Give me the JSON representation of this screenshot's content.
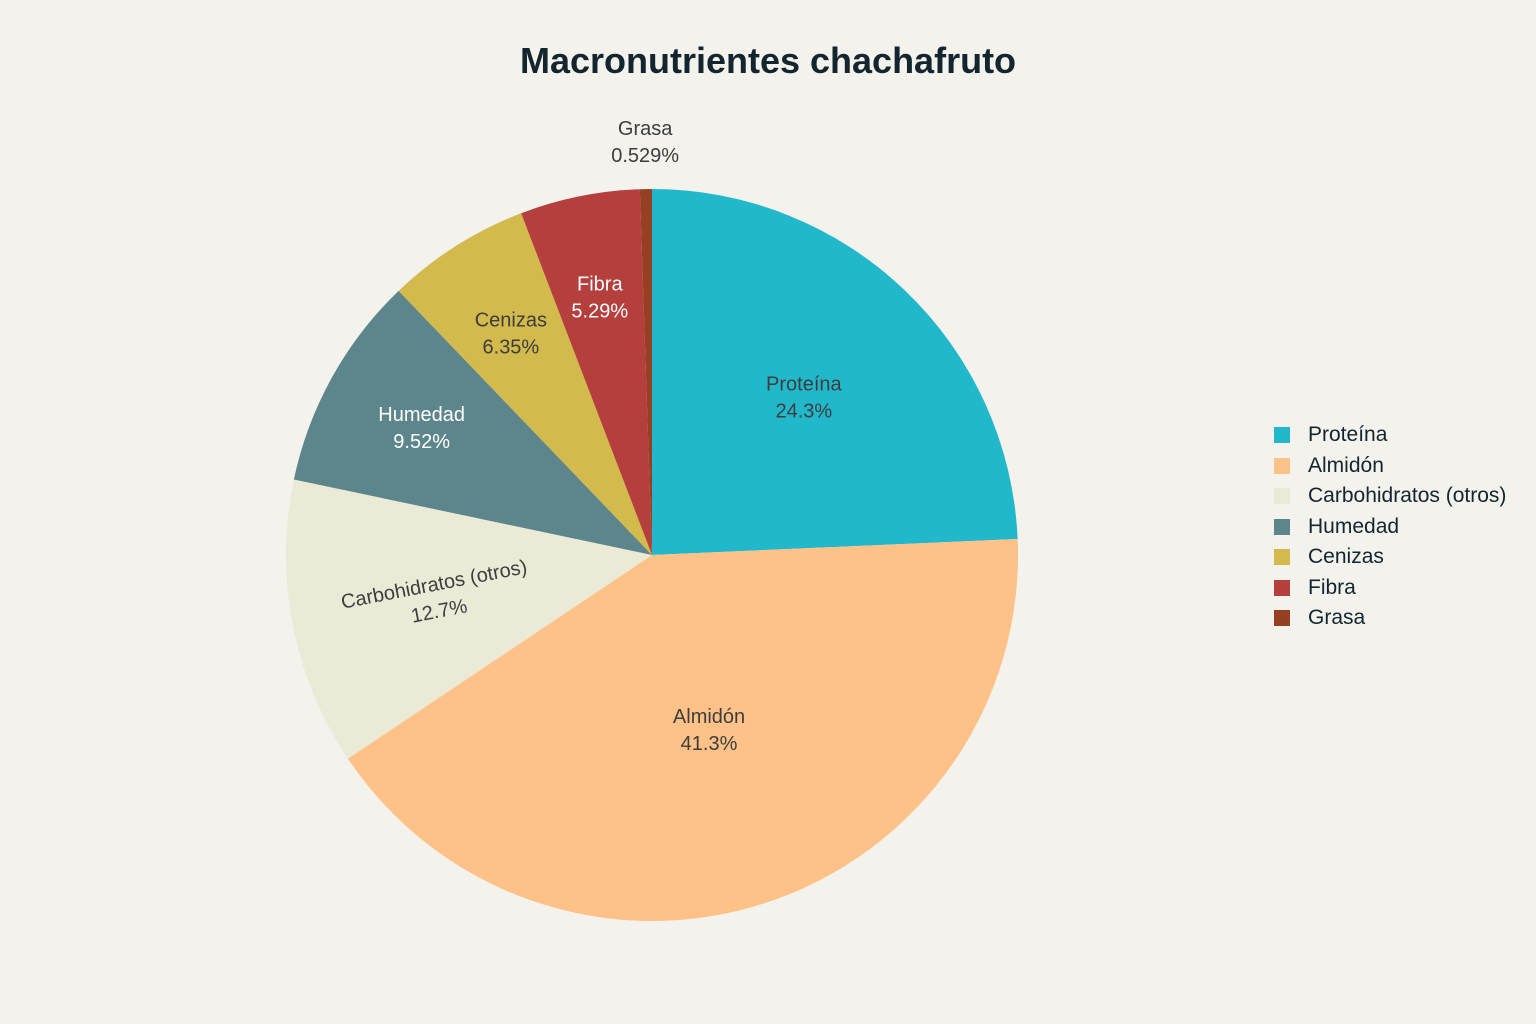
{
  "chart_data": {
    "type": "pie",
    "title": "Macronutrientes chachafruto",
    "slices": [
      {
        "label": "Proteína",
        "value": 24.3,
        "display": "24.3%",
        "color": "#21b8cc",
        "text_color": "#3d3d3d"
      },
      {
        "label": "Almidón",
        "value": 41.3,
        "display": "41.3%",
        "color": "#fec288",
        "text_color": "#3d3d3d"
      },
      {
        "label": "Carbohidratos (otros)",
        "value": 12.7,
        "display": "12.7%",
        "color": "#ebead7",
        "text_color": "#3d3d3d"
      },
      {
        "label": "Humedad",
        "value": 9.52,
        "display": "9.52%",
        "color": "#5d858c",
        "text_color": "#ffffff"
      },
      {
        "label": "Cenizas",
        "value": 6.35,
        "display": "6.35%",
        "color": "#d2ba4c",
        "text_color": "#3d3d3d"
      },
      {
        "label": "Fibra",
        "value": 5.29,
        "display": "5.29%",
        "color": "#b53f3d",
        "text_color": "#ffffff"
      },
      {
        "label": "Grasa",
        "value": 0.529,
        "display": "0.529%",
        "color": "#963f23",
        "text_color": "#3d3d3d"
      }
    ],
    "legend_position": "right"
  }
}
